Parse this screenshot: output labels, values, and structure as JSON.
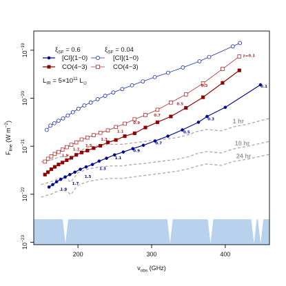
{
  "chart_data": {
    "type": "line",
    "xlabel": "ν",
    "xlabel_sub": "obs",
    "xlabel_unit": " (GHz)",
    "ylabel": "F",
    "ylabel_sub": "line",
    "ylabel_unit": " (W m",
    "ylabel_exp": "−2",
    "ylabel_close": ")",
    "x_scale": "linear",
    "y_scale": "log10",
    "xlim": [
      140,
      460
    ],
    "ylim": [
      -23.05,
      -18.6
    ],
    "x_ticks": [
      200,
      300,
      400
    ],
    "y_ticks": [
      -23,
      -22,
      -21,
      -20,
      -19
    ],
    "y_tick_base": "10",
    "legend": {
      "group_labels": [
        {
          "symbol": "ξ",
          "sub": "SF",
          "value": " = 0.6"
        },
        {
          "symbol": "ξ",
          "sub": "SF",
          "value": " = 0.04"
        }
      ],
      "entries": [
        {
          "label": "[CI](1−0)",
          "series": "ci_high"
        },
        {
          "label": "CO(4−3)",
          "series": "co_high"
        },
        {
          "label": "[CI](1−0)",
          "series": "ci_low"
        },
        {
          "label": "CO(4−3)",
          "series": "co_low"
        }
      ],
      "lir_label": "L",
      "lir_sub": "IR",
      "lir_value": " = 5×10",
      "lir_exp": "11",
      "lir_unit": " L",
      "lir_unit_sub": "⊙"
    },
    "series": [
      {
        "id": "ci_low",
        "label": "[CI](1−0)",
        "xi_sf": 0.04,
        "color": "#1a2cb0",
        "marker": "open-circle",
        "x": [
          157.6,
          162.6,
          167.9,
          173.6,
          179.7,
          186.2,
          193.1,
          200.6,
          208.6,
          217.3,
          226.7,
          236.9,
          248.0,
          260.1,
          273.4,
          288.1,
          304.3,
          322.3,
          342.4,
          365.0,
          378.1,
          410.2,
          420.0
        ],
        "y": [
          -20.66,
          -20.57,
          -20.52,
          -20.47,
          -20.42,
          -20.36,
          -20.29,
          -20.22,
          -20.15,
          -20.09,
          -20.02,
          -19.95,
          -19.88,
          -19.81,
          -19.73,
          -19.65,
          -19.56,
          -19.47,
          -19.36,
          -19.23,
          -19.14,
          -18.92,
          -18.85
        ]
      },
      {
        "id": "co_low",
        "label": "CO(4−3)",
        "xi_sf": 0.04,
        "color": "#b02828",
        "marker": "open-square",
        "x": [
          155.2,
          159.3,
          163.8,
          168.5,
          173.6,
          179.0,
          184.8,
          191.0,
          197.7,
          205.0,
          212.8,
          221.3,
          230.5,
          240.6,
          251.5,
          263.6,
          276.9,
          291.6,
          307.9,
          326.1,
          346.6,
          369.8,
          396.3,
          419.1
        ],
        "y": [
          -21.32,
          -21.26,
          -21.21,
          -21.16,
          -21.12,
          -21.07,
          -21.02,
          -20.97,
          -20.92,
          -20.86,
          -20.82,
          -20.77,
          -20.72,
          -20.67,
          -20.6,
          -20.53,
          -20.44,
          -20.35,
          -20.24,
          -20.09,
          -19.92,
          -19.69,
          -19.39,
          -19.13
        ]
      },
      {
        "id": "co_high",
        "label": "CO(4−3)",
        "xi_sf": 0.6,
        "color": "#8f0000",
        "marker": "filled-square",
        "x": [
          155.2,
          159.3,
          163.8,
          168.5,
          173.6,
          179.0,
          184.8,
          191.0,
          197.7,
          205.0,
          212.8,
          221.3,
          230.5,
          240.6,
          251.5,
          263.6,
          276.9,
          291.6,
          307.9,
          326.1,
          346.6,
          369.8,
          396.3,
          419.1
        ],
        "y": [
          -21.59,
          -21.54,
          -21.48,
          -21.43,
          -21.38,
          -21.34,
          -21.29,
          -21.24,
          -21.18,
          -21.13,
          -21.09,
          -21.04,
          -20.99,
          -20.92,
          -20.87,
          -20.79,
          -20.73,
          -20.61,
          -20.5,
          -20.38,
          -20.2,
          -19.98,
          -19.68,
          -19.42
        ]
      },
      {
        "id": "ci_high",
        "label": "[CI](1−0)",
        "xi_sf": 0.6,
        "color": "#000a8f",
        "marker": "filled-circle",
        "x": [
          160.7,
          165.7,
          171.0,
          176.6,
          182.6,
          189.0,
          195.8,
          203.2,
          211.1,
          219.6,
          228.8,
          238.8,
          249.7,
          261.6,
          274.5,
          288.8,
          304.6,
          322.1,
          341.7,
          363.6,
          375.3,
          400.0,
          447.8
        ],
        "y": [
          -21.85,
          -21.8,
          -21.74,
          -21.69,
          -21.64,
          -21.59,
          -21.54,
          -21.48,
          -21.43,
          -21.38,
          -21.31,
          -21.25,
          -21.18,
          -21.12,
          -21.05,
          -20.98,
          -20.89,
          -20.79,
          -20.66,
          -20.5,
          -20.38,
          -20.19,
          -19.72
        ]
      }
    ],
    "z_labels": [
      {
        "series": "ci_high",
        "text": "0.1",
        "x": 448,
        "y": -19.78
      },
      {
        "series": "ci_high",
        "text": "0.3",
        "x": 376,
        "y": -20.46
      },
      {
        "series": "ci_high",
        "text": "0.5",
        "x": 343,
        "y": -20.73
      },
      {
        "series": "ci_high",
        "text": "0.7",
        "x": 305,
        "y": -20.96
      },
      {
        "series": "ci_high",
        "text": "0.9",
        "x": 275,
        "y": -21.12
      },
      {
        "series": "ci_high",
        "text": "1.1",
        "x": 250,
        "y": -21.27
      },
      {
        "series": "ci_high",
        "text": "1.3",
        "x": 229,
        "y": -21.49
      },
      {
        "series": "ci_high",
        "text": "1.5",
        "x": 209,
        "y": -21.66
      },
      {
        "series": "ci_high",
        "text": "1.7",
        "x": 192,
        "y": -21.8
      },
      {
        "series": "ci_high",
        "text": "1.9",
        "x": 176,
        "y": -21.92
      },
      {
        "series": "co_low",
        "text": "z=0.1",
        "x": 424,
        "y": -19.14
      },
      {
        "series": "co_low",
        "text": "0.3",
        "x": 367,
        "y": -19.76
      },
      {
        "series": "co_low",
        "text": "0.5",
        "x": 334,
        "y": -20.14
      },
      {
        "series": "co_low",
        "text": "0.7",
        "x": 303,
        "y": -20.38
      },
      {
        "series": "co_low",
        "text": "0.9",
        "x": 275,
        "y": -20.54
      },
      {
        "series": "co_low",
        "text": "1.1",
        "x": 253,
        "y": -20.72
      },
      {
        "series": "co_low",
        "text": "1.3",
        "x": 231,
        "y": -20.88
      },
      {
        "series": "co_low",
        "text": "1.5",
        "x": 210,
        "y": -21.01
      },
      {
        "series": "co_low",
        "text": "1.7",
        "x": 193,
        "y": -21.09
      },
      {
        "series": "co_low",
        "text": "1.9",
        "x": 178,
        "y": -21.22
      }
    ],
    "sensitivity_curves": [
      {
        "label": "1 hr",
        "label_x": 410,
        "label_y": -20.52,
        "x": [
          150,
          165,
          175,
          185,
          190,
          200,
          215,
          230,
          245,
          260,
          275,
          290,
          305,
          320,
          335,
          350,
          360,
          375,
          395,
          410,
          430,
          460
        ],
        "y": [
          -21.33,
          -21.28,
          -21.22,
          -21.22,
          -21.3,
          -21.1,
          -21.02,
          -20.98,
          -20.96,
          -20.96,
          -20.93,
          -20.9,
          -20.87,
          -20.85,
          -20.82,
          -20.76,
          -20.7,
          -20.65,
          -20.68,
          -20.6,
          -20.54,
          -20.42
        ]
      },
      {
        "label": "10 hr",
        "label_x": 413,
        "label_y": -20.98,
        "x": [
          150,
          165,
          175,
          185,
          190,
          200,
          215,
          230,
          245,
          260,
          275,
          290,
          305,
          320,
          335,
          350,
          360,
          375,
          395,
          410,
          430,
          460
        ],
        "y": [
          -21.8,
          -21.73,
          -21.66,
          -21.67,
          -21.75,
          -21.55,
          -21.47,
          -21.43,
          -21.41,
          -21.41,
          -21.38,
          -21.36,
          -21.33,
          -21.3,
          -21.27,
          -21.22,
          -21.16,
          -21.11,
          -21.14,
          -21.06,
          -21.0,
          -20.9
        ]
      },
      {
        "label": "24 hr",
        "label_x": 415,
        "label_y": -21.25,
        "x": [
          150,
          165,
          175,
          185,
          190,
          200,
          215,
          230,
          245,
          260,
          275,
          290,
          305,
          320,
          335,
          350,
          360,
          375,
          395,
          410,
          430,
          460
        ],
        "y": [
          -22.06,
          -21.99,
          -21.92,
          -21.93,
          -22.01,
          -21.81,
          -21.73,
          -21.69,
          -21.67,
          -21.67,
          -21.64,
          -21.61,
          -21.58,
          -21.55,
          -21.52,
          -21.47,
          -21.42,
          -21.37,
          -21.4,
          -21.32,
          -21.27,
          -21.17
        ]
      }
    ],
    "atmosphere": {
      "baseline_y": -23.05,
      "top_y": -22.52,
      "absorption_lines_ghz": [
        183,
        325,
        380,
        439,
        448
      ],
      "color": "#b8d2ee"
    },
    "colors": {
      "ci_high": "#000a8f",
      "ci_low": "#1a2cb0",
      "co_high": "#8f0000",
      "co_low": "#b02828",
      "sensitivity": "#a8a8a8",
      "atmosphere": "#b8d2ee"
    }
  }
}
